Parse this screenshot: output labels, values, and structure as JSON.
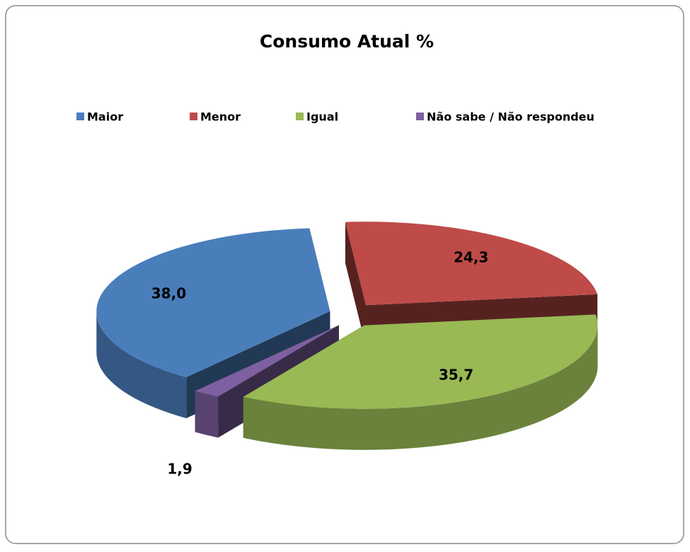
{
  "chart_data": {
    "type": "pie3d",
    "title": "Consumo Atual %",
    "categories": [
      "Maior",
      "Menor",
      "Igual",
      "Não sabe / Não respondeu"
    ],
    "values": [
      38.0,
      24.3,
      35.7,
      1.9
    ],
    "value_labels": [
      "38,0",
      "24,3",
      "35,7",
      "1,9"
    ],
    "colors": [
      "#4a7ebb",
      "#be4b48",
      "#98b954",
      "#7d60a0"
    ],
    "legend": "top"
  }
}
